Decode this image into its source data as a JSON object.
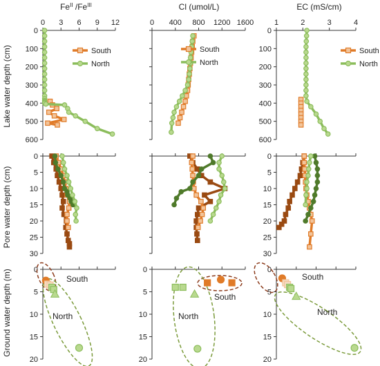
{
  "figure": {
    "row_labels": [
      "Lake water  depth (cm)",
      "Pore water depth (cm)",
      "Ground water depth (m)"
    ],
    "col_titles": [
      {
        "main": "Fe",
        "sup1": "II",
        "mid": " /Fe",
        "sup2": "III"
      },
      {
        "main": "Cl  (umol/L)"
      },
      {
        "main": "EC (mS/cm)"
      }
    ],
    "legend": {
      "south": "South",
      "north": "North"
    },
    "annotations": {
      "south": "South",
      "north": "North"
    }
  },
  "colors": {
    "south": "#e07b28",
    "south_dark": "#9a4a12",
    "south_light": "#f2c49a",
    "north": "#8cbd5c",
    "north_dark": "#4f7a2a",
    "north_light": "#b9d98f",
    "ellipse_south": "#8b3a1a",
    "ellipse_north": "#7a9a3a"
  },
  "chart_data": [
    {
      "type": "line",
      "panel": "lake-fe",
      "xlim": [
        0,
        12
      ],
      "ylim": [
        600,
        0
      ],
      "xticks": [
        "0",
        "3",
        "6",
        "9",
        "12"
      ],
      "yticks": [
        "0",
        "100",
        "200",
        "300",
        "400",
        "500",
        "600"
      ],
      "legend": true,
      "series": [
        {
          "name": "South",
          "x": [
            1.2,
            1.6,
            2.3,
            1.0,
            1.9,
            3.5,
            0.8,
            2.4
          ],
          "y": [
            390,
            410,
            430,
            450,
            470,
            490,
            510,
            520
          ]
        },
        {
          "name": "North",
          "x": [
            0.3,
            0.3,
            0.3,
            0.3,
            0.3,
            0.3,
            0.3,
            0.3,
            0.3,
            0.3,
            0.3,
            0.3,
            0.3,
            0.3,
            0.3,
            0.3,
            0.3,
            0.3,
            0.5,
            3.6,
            4.1,
            4.3,
            5.4,
            7.0,
            9.0,
            11.5
          ],
          "y": [
            0,
            30,
            60,
            90,
            120,
            150,
            180,
            210,
            240,
            270,
            300,
            330,
            360,
            375,
            385,
            390,
            395,
            400,
            405,
            410,
            430,
            450,
            470,
            500,
            540,
            570
          ]
        }
      ]
    },
    {
      "type": "line",
      "panel": "lake-cl",
      "xlim": [
        0,
        1600
      ],
      "ylim": [
        600,
        0
      ],
      "xticks": [
        "0",
        "400",
        "800",
        "1200",
        "1600"
      ],
      "yticks": [],
      "legend": true,
      "series": [
        {
          "name": "South",
          "x": [
            720,
            700,
            690,
            680,
            670,
            660,
            650,
            640,
            630,
            620,
            610,
            590,
            570,
            540,
            510,
            480,
            450
          ],
          "y": [
            30,
            60,
            90,
            120,
            150,
            180,
            210,
            240,
            270,
            300,
            330,
            360,
            390,
            420,
            450,
            480,
            510
          ]
        },
        {
          "name": "North",
          "x": [
            700,
            690,
            680,
            670,
            660,
            660,
            650,
            640,
            630,
            610,
            570,
            520,
            470,
            420,
            380,
            360,
            340,
            330
          ],
          "y": [
            30,
            60,
            90,
            120,
            150,
            180,
            210,
            240,
            270,
            300,
            330,
            360,
            390,
            420,
            450,
            480,
            510,
            560
          ]
        }
      ]
    },
    {
      "type": "line",
      "panel": "lake-ec",
      "xlim": [
        1,
        4
      ],
      "ylim": [
        600,
        0
      ],
      "xticks": [
        "1",
        "2",
        "3",
        "4"
      ],
      "yticks": [
        "0",
        "100",
        "200",
        "300",
        "400",
        "500",
        "600"
      ],
      "legend": true,
      "series": [
        {
          "name": "South",
          "x": [
            1.93,
            1.93,
            1.93,
            1.93,
            1.93,
            1.93,
            1.93,
            1.93
          ],
          "y": [
            380,
            400,
            420,
            440,
            460,
            480,
            500,
            520
          ]
        },
        {
          "name": "North",
          "x": [
            2.15,
            2.14,
            2.13,
            2.12,
            2.12,
            2.12,
            2.12,
            2.12,
            2.12,
            2.12,
            2.12,
            2.12,
            2.12,
            2.15,
            2.3,
            2.5,
            2.65,
            2.8,
            2.95
          ],
          "y": [
            0,
            30,
            60,
            90,
            120,
            150,
            180,
            210,
            240,
            270,
            300,
            330,
            360,
            390,
            420,
            460,
            500,
            540,
            570
          ]
        }
      ]
    },
    {
      "type": "line",
      "panel": "pore-fe",
      "xlim": [
        0,
        12
      ],
      "ylim": [
        30,
        0
      ],
      "xticks": [],
      "yticks": [
        "0",
        "5",
        "10",
        "15",
        "20",
        "25",
        "30"
      ],
      "series": [
        {
          "name": "South dark",
          "x": [
            1.5,
            1.8,
            2.2,
            2.4,
            2.7,
            3.0,
            3.2,
            3.4,
            3.2,
            3.5,
            3.9,
            3.8,
            4.0,
            4.2,
            4.4,
            4.4
          ],
          "y": [
            0,
            2,
            4,
            6,
            8,
            10,
            12,
            14,
            16,
            18,
            20,
            22,
            24,
            26,
            27,
            28
          ]
        },
        {
          "name": "South light",
          "x": [
            2.2,
            2.6,
            3.0,
            3.4,
            3.6,
            3.8,
            4.0,
            4.4,
            4.3,
            4.0,
            4.0,
            4.2
          ],
          "y": [
            0,
            2,
            4,
            6,
            8,
            10,
            12,
            14,
            16,
            18,
            20,
            22
          ]
        },
        {
          "name": "North dark",
          "x": [
            2.0,
            2.1,
            2.5,
            3.0,
            3.4,
            3.6,
            4.0,
            4.1,
            4.5,
            4.7,
            5.0
          ],
          "y": [
            0,
            2,
            4,
            6,
            8,
            10,
            11,
            12,
            13,
            14,
            15
          ]
        },
        {
          "name": "North light",
          "x": [
            3.2,
            3.4,
            3.6,
            4.0,
            4.3,
            4.6,
            4.9,
            5.3,
            5.6,
            5.4,
            5.5
          ],
          "y": [
            0,
            2,
            4,
            6,
            8,
            10,
            12,
            14,
            16,
            18,
            20
          ]
        }
      ]
    },
    {
      "type": "line",
      "panel": "pore-cl",
      "xlim": [
        0,
        1600
      ],
      "ylim": [
        30,
        0
      ],
      "xticks": [],
      "yticks": [],
      "series": [
        {
          "name": "South dark",
          "x": [
            650,
            700,
            780,
            850,
            1000,
            1250,
            900,
            1000,
            800,
            780,
            760,
            760,
            770,
            780
          ],
          "y": [
            0,
            2,
            4,
            6,
            8,
            10,
            12,
            14,
            16,
            18,
            20,
            22,
            24,
            26
          ]
        },
        {
          "name": "South light",
          "x": [
            700,
            680,
            690,
            700,
            710,
            720,
            760,
            840,
            880,
            860,
            830,
            790
          ],
          "y": [
            0,
            2,
            4,
            6,
            8,
            10,
            12,
            14,
            16,
            18,
            20,
            22
          ]
        },
        {
          "name": "North dark",
          "x": [
            1000,
            1050,
            850,
            800,
            700,
            650,
            500,
            420,
            380
          ],
          "y": [
            0,
            2,
            4,
            6,
            8,
            10,
            11,
            13,
            15
          ]
        },
        {
          "name": "North light",
          "x": [
            1200,
            1150,
            1150,
            1200,
            1230,
            1250,
            1180,
            1150,
            1100,
            1050,
            1000
          ],
          "y": [
            0,
            2,
            4,
            6,
            8,
            10,
            12,
            14,
            16,
            18,
            20
          ]
        }
      ]
    },
    {
      "type": "line",
      "panel": "pore-ec",
      "xlim": [
        1,
        4
      ],
      "ylim": [
        30,
        0
      ],
      "xticks": [],
      "yticks": [
        "0",
        "5",
        "10",
        "15",
        "20",
        "25",
        "30"
      ],
      "series": [
        {
          "name": "South dark",
          "x": [
            2.05,
            2.0,
            1.95,
            1.9,
            1.8,
            1.7,
            1.6,
            1.5,
            1.45,
            1.35,
            1.3,
            1.2,
            1.1
          ],
          "y": [
            0,
            2,
            4,
            6,
            8,
            10,
            12,
            14,
            16,
            18,
            20,
            21,
            22
          ]
        },
        {
          "name": "South light",
          "x": [
            2.05,
            2.05,
            2.07,
            2.08,
            2.1,
            2.12,
            2.15,
            2.2,
            2.25,
            2.3,
            2.35,
            2.3,
            2.25
          ],
          "y": [
            0,
            2,
            4,
            6,
            8,
            10,
            12,
            14,
            16,
            18,
            20,
            24,
            28
          ]
        },
        {
          "name": "North dark",
          "x": [
            2.45,
            2.5,
            2.55,
            2.55,
            2.55,
            2.5,
            2.45,
            2.4,
            2.3,
            2.2,
            2.1
          ],
          "y": [
            0,
            2,
            4,
            6,
            8,
            10,
            12,
            14,
            16,
            18,
            20
          ]
        },
        {
          "name": "North light",
          "x": [
            2.3,
            2.25,
            2.22,
            2.2,
            2.15,
            2.15,
            2.12,
            2.1
          ],
          "y": [
            0,
            2,
            4,
            6,
            8,
            10,
            12,
            15
          ]
        }
      ]
    },
    {
      "type": "scatter",
      "panel": "ground-fe",
      "xlim": [
        0,
        12
      ],
      "ylim": [
        20,
        0
      ],
      "xticks": [],
      "yticks": [
        "0",
        "5",
        "10",
        "15",
        "20"
      ],
      "series": [
        {
          "name": "South",
          "points": [
            {
              "x": 0.5,
              "y": 2.5,
              "shape": "circle"
            },
            {
              "x": 0.8,
              "y": 3.3,
              "shape": "square"
            },
            {
              "x": 1.2,
              "y": 3.5,
              "shape": "square"
            }
          ]
        },
        {
          "name": "North",
          "points": [
            {
              "x": 1.5,
              "y": 4.0,
              "shape": "square"
            },
            {
              "x": 1.8,
              "y": 4.5,
              "shape": "square"
            },
            {
              "x": 2.0,
              "y": 5.5,
              "shape": "triangle"
            },
            {
              "x": 6.0,
              "y": 17.5,
              "shape": "circle"
            }
          ]
        }
      ]
    },
    {
      "type": "scatter",
      "panel": "ground-cl",
      "xlim": [
        0,
        1600
      ],
      "ylim": [
        20,
        0
      ],
      "xticks": [],
      "yticks": [
        "0",
        "5",
        "10",
        "15",
        "20"
      ],
      "series": [
        {
          "name": "South",
          "points": [
            {
              "x": 950,
              "y": 3.0,
              "shape": "square"
            },
            {
              "x": 1180,
              "y": 2.3,
              "shape": "circle"
            },
            {
              "x": 1370,
              "y": 3.0,
              "shape": "square"
            }
          ]
        },
        {
          "name": "North",
          "points": [
            {
              "x": 400,
              "y": 4.0,
              "shape": "square"
            },
            {
              "x": 530,
              "y": 4.0,
              "shape": "square"
            },
            {
              "x": 730,
              "y": 5.5,
              "shape": "triangle"
            },
            {
              "x": 780,
              "y": 17.7,
              "shape": "circle"
            }
          ]
        }
      ]
    },
    {
      "type": "scatter",
      "panel": "ground-ec",
      "xlim": [
        1,
        4
      ],
      "ylim": [
        20,
        0
      ],
      "xticks": [],
      "yticks": [
        "0",
        "5",
        "10",
        "15",
        "20"
      ],
      "series": [
        {
          "name": "South",
          "points": [
            {
              "x": 1.22,
              "y": 2.0,
              "shape": "circle"
            },
            {
              "x": 1.35,
              "y": 3.0,
              "shape": "square"
            },
            {
              "x": 1.42,
              "y": 3.4,
              "shape": "square"
            }
          ]
        },
        {
          "name": "North",
          "points": [
            {
              "x": 1.5,
              "y": 4.0,
              "shape": "square"
            },
            {
              "x": 1.55,
              "y": 4.3,
              "shape": "square"
            },
            {
              "x": 1.75,
              "y": 6.0,
              "shape": "triangle"
            },
            {
              "x": 3.95,
              "y": 17.5,
              "shape": "circle"
            }
          ]
        }
      ]
    }
  ]
}
